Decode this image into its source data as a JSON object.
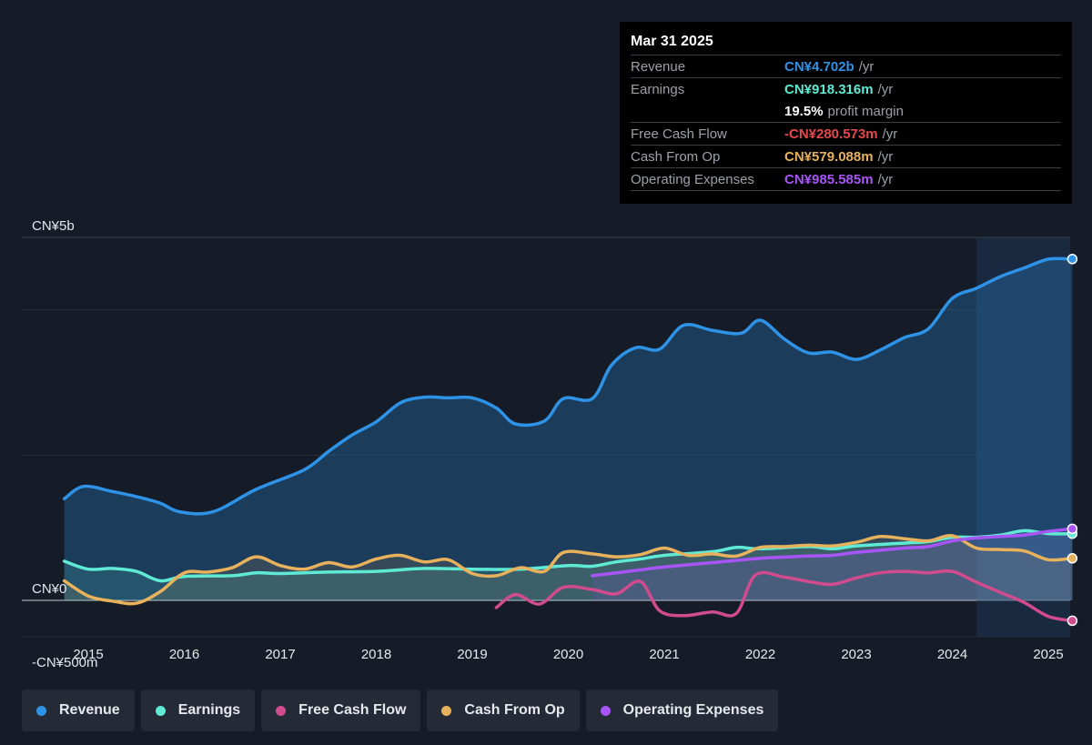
{
  "chart_data": {
    "type": "line",
    "y_unit": "CN¥ m",
    "ylim": [
      -500,
      5000
    ],
    "ytick_labels": [
      {
        "value": 5000,
        "label": "CN¥5b"
      },
      {
        "value": 0,
        "label": "CN¥0"
      },
      {
        "value": -500,
        "label": "-CN¥500m"
      }
    ],
    "xlim": [
      2014.45,
      2025.25
    ],
    "xticks": [
      2015,
      2016,
      2017,
      2018,
      2019,
      2020,
      2021,
      2022,
      2023,
      2024,
      2025
    ],
    "highlight_start": 2024.25,
    "grid": true,
    "legend_position": "bottom",
    "series": [
      {
        "name": "Revenue",
        "color": "#2e93e6",
        "fill": true,
        "points": [
          [
            2014.75,
            1400
          ],
          [
            2014.95,
            1570
          ],
          [
            2015.25,
            1500
          ],
          [
            2015.5,
            1430
          ],
          [
            2015.75,
            1340
          ],
          [
            2015.95,
            1220
          ],
          [
            2016.3,
            1220
          ],
          [
            2016.75,
            1530
          ],
          [
            2017.25,
            1800
          ],
          [
            2017.5,
            2050
          ],
          [
            2017.75,
            2280
          ],
          [
            2018.0,
            2460
          ],
          [
            2018.25,
            2720
          ],
          [
            2018.5,
            2800
          ],
          [
            2018.75,
            2790
          ],
          [
            2019.0,
            2790
          ],
          [
            2019.25,
            2650
          ],
          [
            2019.45,
            2430
          ],
          [
            2019.75,
            2470
          ],
          [
            2019.95,
            2780
          ],
          [
            2020.25,
            2780
          ],
          [
            2020.45,
            3240
          ],
          [
            2020.7,
            3480
          ],
          [
            2020.95,
            3460
          ],
          [
            2021.2,
            3790
          ],
          [
            2021.5,
            3720
          ],
          [
            2021.8,
            3680
          ],
          [
            2022.0,
            3860
          ],
          [
            2022.25,
            3600
          ],
          [
            2022.5,
            3410
          ],
          [
            2022.75,
            3420
          ],
          [
            2023.0,
            3320
          ],
          [
            2023.25,
            3450
          ],
          [
            2023.5,
            3620
          ],
          [
            2023.75,
            3740
          ],
          [
            2024.0,
            4160
          ],
          [
            2024.25,
            4300
          ],
          [
            2024.5,
            4460
          ],
          [
            2024.75,
            4580
          ],
          [
            2025.0,
            4700
          ],
          [
            2025.25,
            4702
          ]
        ]
      },
      {
        "name": "Earnings",
        "color": "#5eead4",
        "fill": true,
        "points": [
          [
            2014.75,
            540
          ],
          [
            2015.0,
            430
          ],
          [
            2015.25,
            440
          ],
          [
            2015.5,
            400
          ],
          [
            2015.75,
            270
          ],
          [
            2016.0,
            330
          ],
          [
            2016.5,
            340
          ],
          [
            2016.75,
            380
          ],
          [
            2017.0,
            370
          ],
          [
            2017.5,
            390
          ],
          [
            2018.0,
            400
          ],
          [
            2018.5,
            440
          ],
          [
            2019.0,
            430
          ],
          [
            2019.5,
            430
          ],
          [
            2020.0,
            480
          ],
          [
            2020.25,
            470
          ],
          [
            2020.5,
            530
          ],
          [
            2020.75,
            570
          ],
          [
            2021.0,
            620
          ],
          [
            2021.5,
            670
          ],
          [
            2021.75,
            730
          ],
          [
            2022.0,
            710
          ],
          [
            2022.5,
            740
          ],
          [
            2022.75,
            710
          ],
          [
            2023.0,
            750
          ],
          [
            2023.5,
            790
          ],
          [
            2023.75,
            810
          ],
          [
            2024.0,
            870
          ],
          [
            2024.25,
            870
          ],
          [
            2024.5,
            900
          ],
          [
            2024.75,
            960
          ],
          [
            2025.0,
            920
          ],
          [
            2025.25,
            918.316
          ]
        ]
      },
      {
        "name": "Free Cash Flow",
        "color": "#d14b8f",
        "fill": false,
        "points": [
          [
            2019.25,
            -100
          ],
          [
            2019.45,
            80
          ],
          [
            2019.7,
            -50
          ],
          [
            2019.95,
            180
          ],
          [
            2020.25,
            150
          ],
          [
            2020.5,
            90
          ],
          [
            2020.75,
            260
          ],
          [
            2020.95,
            -140
          ],
          [
            2021.2,
            -210
          ],
          [
            2021.5,
            -160
          ],
          [
            2021.75,
            -180
          ],
          [
            2021.95,
            350
          ],
          [
            2022.25,
            320
          ],
          [
            2022.5,
            260
          ],
          [
            2022.75,
            220
          ],
          [
            2023.0,
            310
          ],
          [
            2023.25,
            380
          ],
          [
            2023.5,
            400
          ],
          [
            2023.75,
            380
          ],
          [
            2024.0,
            400
          ],
          [
            2024.25,
            250
          ],
          [
            2024.5,
            110
          ],
          [
            2024.75,
            -30
          ],
          [
            2025.0,
            -220
          ],
          [
            2025.25,
            -280.573
          ]
        ]
      },
      {
        "name": "Cash From Op",
        "color": "#e8b15c",
        "fill": true,
        "points": [
          [
            2014.75,
            270
          ],
          [
            2015.0,
            60
          ],
          [
            2015.25,
            -10
          ],
          [
            2015.5,
            -40
          ],
          [
            2015.75,
            120
          ],
          [
            2016.0,
            380
          ],
          [
            2016.25,
            390
          ],
          [
            2016.5,
            450
          ],
          [
            2016.75,
            600
          ],
          [
            2017.0,
            480
          ],
          [
            2017.25,
            430
          ],
          [
            2017.5,
            520
          ],
          [
            2017.75,
            460
          ],
          [
            2018.0,
            570
          ],
          [
            2018.25,
            620
          ],
          [
            2018.5,
            530
          ],
          [
            2018.75,
            560
          ],
          [
            2019.0,
            370
          ],
          [
            2019.25,
            340
          ],
          [
            2019.5,
            450
          ],
          [
            2019.75,
            400
          ],
          [
            2019.95,
            660
          ],
          [
            2020.25,
            640
          ],
          [
            2020.5,
            600
          ],
          [
            2020.75,
            630
          ],
          [
            2021.0,
            720
          ],
          [
            2021.25,
            620
          ],
          [
            2021.5,
            640
          ],
          [
            2021.75,
            610
          ],
          [
            2022.0,
            730
          ],
          [
            2022.25,
            740
          ],
          [
            2022.5,
            760
          ],
          [
            2022.75,
            750
          ],
          [
            2023.0,
            800
          ],
          [
            2023.25,
            880
          ],
          [
            2023.5,
            850
          ],
          [
            2023.75,
            820
          ],
          [
            2024.0,
            890
          ],
          [
            2024.25,
            720
          ],
          [
            2024.5,
            700
          ],
          [
            2024.75,
            680
          ],
          [
            2025.0,
            560
          ],
          [
            2025.25,
            579.088
          ]
        ]
      },
      {
        "name": "Operating Expenses",
        "color": "#a855f7",
        "fill": true,
        "points": [
          [
            2020.25,
            340
          ],
          [
            2020.5,
            380
          ],
          [
            2020.75,
            420
          ],
          [
            2021.0,
            460
          ],
          [
            2021.5,
            520
          ],
          [
            2022.0,
            580
          ],
          [
            2022.5,
            610
          ],
          [
            2022.75,
            620
          ],
          [
            2023.0,
            660
          ],
          [
            2023.5,
            720
          ],
          [
            2023.75,
            740
          ],
          [
            2024.0,
            820
          ],
          [
            2024.25,
            860
          ],
          [
            2024.5,
            880
          ],
          [
            2024.75,
            900
          ],
          [
            2025.0,
            950
          ],
          [
            2025.25,
            985.585
          ]
        ]
      }
    ]
  },
  "tooltip": {
    "date": "Mar 31 2025",
    "rows": [
      {
        "label": "Revenue",
        "value": "CN¥4.702b",
        "unit": "/yr",
        "color": "#2e93e6"
      },
      {
        "label": "Earnings",
        "value": "CN¥918.316m",
        "unit": "/yr",
        "color": "#5eead4"
      },
      {
        "label": "",
        "value": "19.5%",
        "unit": "profit margin",
        "color": "#ffffff"
      },
      {
        "label": "Free Cash Flow",
        "value": "-CN¥280.573m",
        "unit": "/yr",
        "color": "#e5484d"
      },
      {
        "label": "Cash From Op",
        "value": "CN¥579.088m",
        "unit": "/yr",
        "color": "#e8b15c"
      },
      {
        "label": "Operating Expenses",
        "value": "CN¥985.585m",
        "unit": "/yr",
        "color": "#a855f7"
      }
    ]
  },
  "legend": [
    {
      "label": "Revenue",
      "color": "#2e93e6"
    },
    {
      "label": "Earnings",
      "color": "#5eead4"
    },
    {
      "label": "Free Cash Flow",
      "color": "#d14b8f"
    },
    {
      "label": "Cash From Op",
      "color": "#e8b15c"
    },
    {
      "label": "Operating Expenses",
      "color": "#a855f7"
    }
  ]
}
